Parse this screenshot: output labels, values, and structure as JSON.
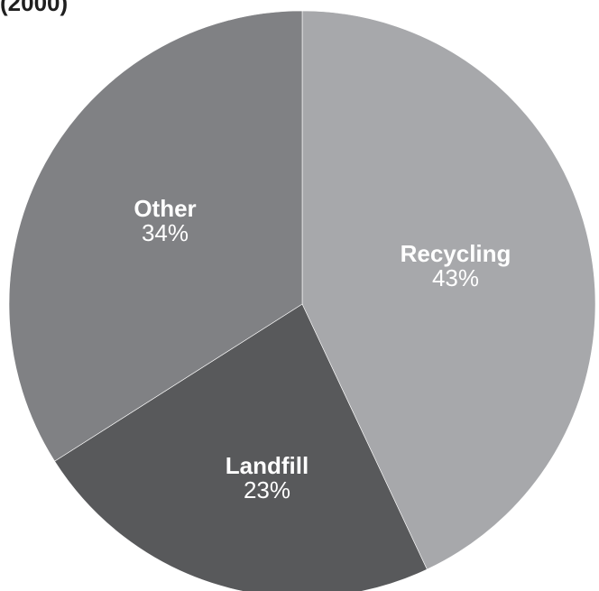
{
  "chart_data": {
    "type": "pie",
    "title": "(2000)",
    "slices": [
      {
        "label": "Recycling",
        "value": 43,
        "value_label": "43%",
        "color": "#a7a8ab"
      },
      {
        "label": "Landfill",
        "value": 23,
        "value_label": "23%",
        "color": "#58595b"
      },
      {
        "label": "Other",
        "value": 34,
        "value_label": "34%",
        "color": "#808184"
      }
    ],
    "start": "top (12 o'clock)",
    "direction": "clockwise",
    "legend": "none",
    "labels": "on slices, white"
  }
}
